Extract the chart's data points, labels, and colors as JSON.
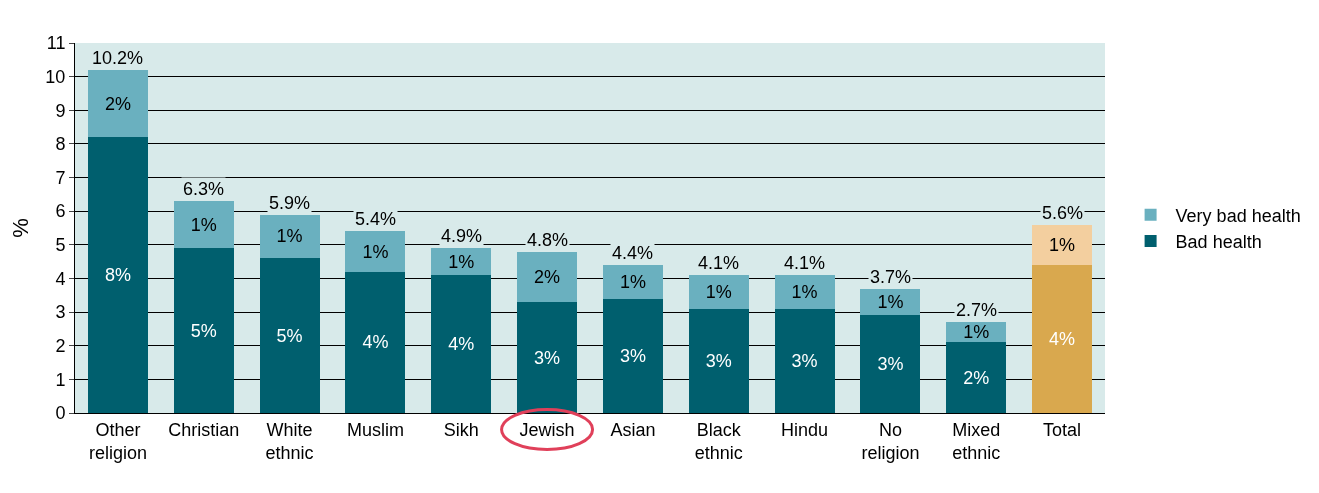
{
  "chart_data": {
    "type": "bar",
    "stacked": true,
    "ylabel": "%",
    "categories": [
      "Other religion",
      "Christian",
      "White ethnic",
      "Muslim",
      "Sikh",
      "Jewish",
      "Asian",
      "Black ethnic",
      "Hindu",
      "No religion",
      "Mixed ethnic",
      "Total"
    ],
    "series": [
      {
        "name": "Bad health",
        "colors": [
          "#005f6e",
          "#005f6e",
          "#005f6e",
          "#005f6e",
          "#005f6e",
          "#005f6e",
          "#005f6e",
          "#005f6e",
          "#005f6e",
          "#005f6e",
          "#005f6e",
          "#d9a84e"
        ],
        "values": [
          8.2,
          4.9,
          4.6,
          4.2,
          4.1,
          3.3,
          3.4,
          3.1,
          3.1,
          2.9,
          2.1,
          4.4
        ],
        "value_labels": [
          "8%",
          "5%",
          "5%",
          "4%",
          "4%",
          "3%",
          "3%",
          "3%",
          "3%",
          "3%",
          "2%",
          "4%"
        ]
      },
      {
        "name": "Very bad health",
        "colors": [
          "#6ab0bf",
          "#6ab0bf",
          "#6ab0bf",
          "#6ab0bf",
          "#6ab0bf",
          "#6ab0bf",
          "#6ab0bf",
          "#6ab0bf",
          "#6ab0bf",
          "#6ab0bf",
          "#6ab0bf",
          "#f3cf9f"
        ],
        "values": [
          2.0,
          1.4,
          1.3,
          1.2,
          0.8,
          1.5,
          1.0,
          1.0,
          1.0,
          0.8,
          0.6,
          1.2
        ],
        "value_labels": [
          "2%",
          "1%",
          "1%",
          "1%",
          "1%",
          "2%",
          "1%",
          "1%",
          "1%",
          "1%",
          "1%",
          "1%"
        ]
      }
    ],
    "totals": [
      "10.2%",
      "6.3%",
      "5.9%",
      "5.4%",
      "4.9%",
      "4.8%",
      "4.4%",
      "4.1%",
      "4.1%",
      "3.7%",
      "2.7%",
      "5.6%"
    ],
    "ylim": [
      0,
      11
    ],
    "yticks": [
      0,
      1,
      2,
      3,
      4,
      5,
      6,
      7,
      8,
      9,
      10,
      11
    ],
    "grid": "y",
    "legend": "right"
  }
}
